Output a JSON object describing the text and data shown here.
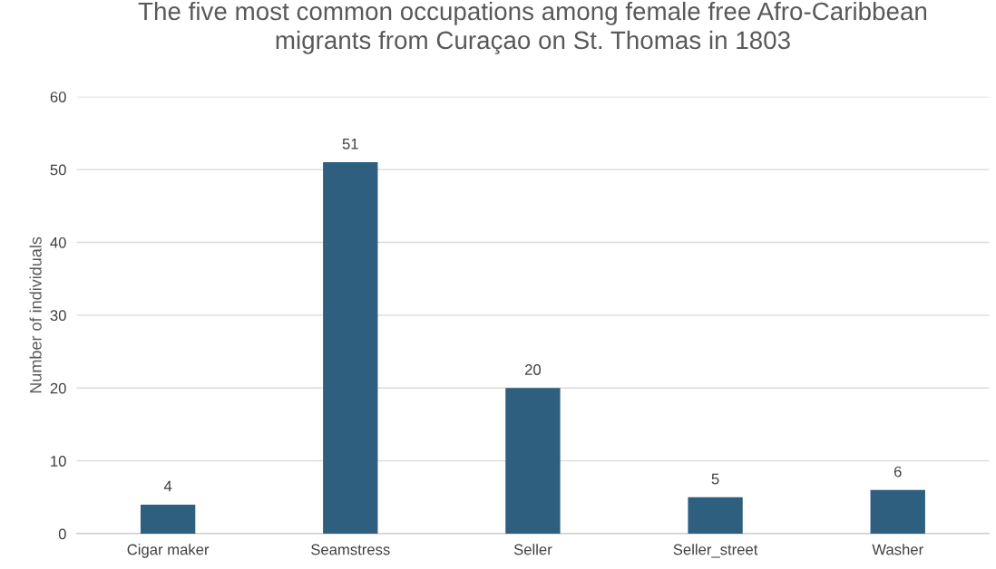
{
  "chart_data": {
    "type": "bar",
    "title": "The five most common occupations among female free Afro-Caribbean\nmigrants from Curaçao on St. Thomas in 1803",
    "ylabel": "Number of individuals",
    "categories": [
      "Cigar maker",
      "Seamstress",
      "Seller",
      "Seller_street",
      "Washer"
    ],
    "values": [
      4,
      51,
      20,
      5,
      6
    ],
    "color": "#2e5f7f",
    "ylim": [
      0,
      60
    ],
    "yticks": [
      0,
      10,
      20,
      30,
      40,
      50,
      60
    ],
    "grid": "y",
    "data_labels": true
  }
}
